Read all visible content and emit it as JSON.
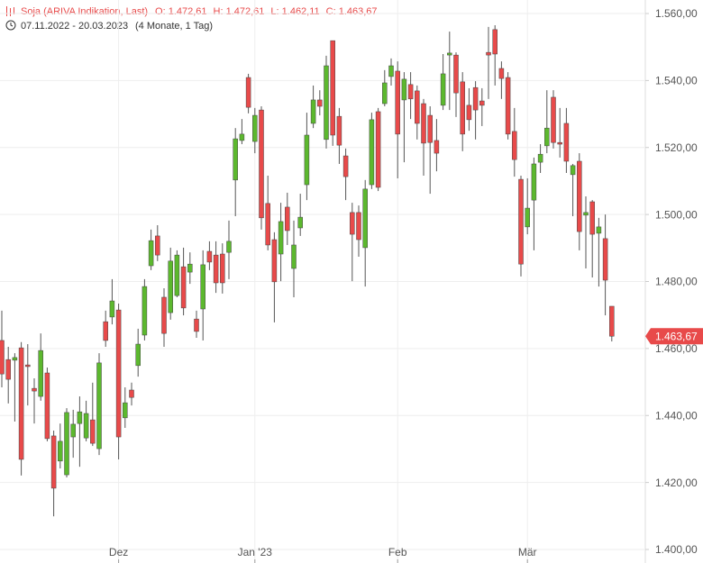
{
  "chart_data": {
    "type": "candlestick",
    "title": "Soja (ARIVA Indikation, Last)",
    "header_values": [
      "O: 1.472,61",
      "H: 1.472,61",
      "L: 1.462,11",
      "C: 1.463,67"
    ],
    "date_range": "07.11.2022 - 20.03.2023",
    "period": "(4 Monate, 1 Tag)",
    "up_color": "#5cb82e",
    "down_color": "#e84a4a",
    "grid": true,
    "ylim": [
      1400,
      1560
    ],
    "yticks": [
      {
        "value": 1400,
        "label": "1.400,00"
      },
      {
        "value": 1420,
        "label": "1.420,00"
      },
      {
        "value": 1440,
        "label": "1.440,00"
      },
      {
        "value": 1460,
        "label": "1.460,00"
      },
      {
        "value": 1480,
        "label": "1.480,00"
      },
      {
        "value": 1500,
        "label": "1.500,00"
      },
      {
        "value": 1520,
        "label": "1.520,00"
      },
      {
        "value": 1540,
        "label": "1.540,00"
      },
      {
        "value": 1560,
        "label": "1.560,00"
      }
    ],
    "last_price": {
      "value": 1463.67,
      "label": "1.463,67"
    },
    "categories": [
      null,
      null,
      null,
      null,
      null,
      null,
      null,
      null,
      null,
      null,
      null,
      null,
      null,
      null,
      null,
      null,
      null,
      null,
      "Dez",
      null,
      null,
      null,
      null,
      null,
      null,
      null,
      null,
      null,
      null,
      null,
      null,
      null,
      null,
      null,
      null,
      null,
      null,
      null,
      null,
      "Jan '23",
      null,
      null,
      null,
      null,
      null,
      null,
      null,
      null,
      null,
      null,
      null,
      null,
      null,
      null,
      null,
      null,
      null,
      null,
      null,
      null,
      null,
      "Feb",
      null,
      null,
      null,
      null,
      null,
      null,
      null,
      null,
      null,
      null,
      null,
      null,
      null,
      null,
      null,
      null,
      null,
      null,
      null,
      "Mär",
      null,
      null,
      null,
      null,
      null,
      null,
      null,
      null,
      null,
      null,
      null,
      null,
      null
    ],
    "open": [
      1462.4,
      1456.7,
      1456.5,
      1460.2,
      1455.1,
      1448.1,
      1445.7,
      1452.7,
      1433.9,
      1426.4,
      1422.3,
      1433.6,
      1437.6,
      1433.3,
      1438.7,
      1430.1,
      1468.0,
      1469.4,
      1471.5,
      1439.3,
      1447.6,
      1454.9,
      1464.0,
      1484.7,
      1493.6,
      1475.3,
      1470.7,
      1475.8,
      1484.4,
      1482.8,
      1468.8,
      1471.8,
      1489.0,
      1487.9,
      1488.2,
      1488.7,
      1510.3,
      1522.1,
      1540.9,
      1521.8,
      1531.2,
      1503.3,
      1492.5,
      1488.2,
      1502.2,
      1483.9,
      1496.0,
      1508.9,
      1527.2,
      1534.2,
      1522.4,
      1551.9,
      1529.3,
      1517.5,
      1500.6,
      1500.6,
      1490.1,
      1508.9,
      1530.7,
      1533.1,
      1541.2,
      1542.8,
      1534.2,
      1538.8,
      1536.9,
      1533.1,
      1529.6,
      1522.1,
      1532.6,
      1547.6,
      1547.6,
      1539.6,
      1532.6,
      1537.9,
      1533.9,
      1548.4,
      1555.2,
      1543.6,
      1540.9,
      1524.8,
      1510.5,
      1496.3,
      1504.3,
      1515.6,
      1520.5,
      1535.0,
      1521.5,
      1527.2,
      1511.9,
      1515.9,
      1499.8,
      1503.8,
      1494.4,
      1492.8,
      1472.61
    ],
    "high": [
      1471.3,
      1460.5,
      1458.6,
      1461.9,
      1461.3,
      1451.1,
      1464.5,
      1454.3,
      1435.5,
      1437.6,
      1442.2,
      1441.7,
      1445.7,
      1444.4,
      1449.8,
      1458.6,
      1471.3,
      1480.7,
      1473.4,
      1448.4,
      1449.8,
      1465.9,
      1480.7,
      1495.5,
      1496.8,
      1478.0,
      1490.1,
      1489.3,
      1490.1,
      1488.7,
      1471.3,
      1489.3,
      1492.0,
      1492.0,
      1491.4,
      1498.2,
      1525.8,
      1528.5,
      1542.0,
      1531.8,
      1532.3,
      1511.6,
      1494.7,
      1503.5,
      1506.5,
      1498.2,
      1506.2,
      1530.4,
      1538.5,
      1537.1,
      1547.4,
      1551.9,
      1531.8,
      1519.7,
      1503.5,
      1502.7,
      1510.3,
      1530.4,
      1531.8,
      1543.1,
      1546.6,
      1545.7,
      1542.5,
      1542.5,
      1538.5,
      1534.5,
      1532.3,
      1528.5,
      1547.9,
      1554.6,
      1548.4,
      1542.5,
      1537.7,
      1539.8,
      1537.7,
      1556.0,
      1556.5,
      1545.7,
      1542.5,
      1531.8,
      1511.6,
      1510.8,
      1517.0,
      1521.0,
      1537.1,
      1537.1,
      1531.8,
      1531.8,
      1515.1,
      1518.3,
      1505.4,
      1504.3,
      1499.0,
      1500.0,
      1472.61
    ],
    "low": [
      1448.4,
      1443.6,
      1438.2,
      1422.1,
      1443.0,
      1437.6,
      1444.4,
      1432.3,
      1409.9,
      1424.2,
      1421.5,
      1427.4,
      1424.7,
      1432.3,
      1430.9,
      1428.2,
      1460.5,
      1467.2,
      1426.9,
      1436.3,
      1443.0,
      1451.6,
      1462.4,
      1483.4,
      1486.1,
      1460.5,
      1468.6,
      1475.3,
      1469.9,
      1479.3,
      1463.2,
      1462.4,
      1483.4,
      1476.6,
      1476.4,
      1480.7,
      1499.5,
      1521.0,
      1530.2,
      1518.3,
      1495.5,
      1489.3,
      1467.8,
      1480.1,
      1490.9,
      1475.3,
      1493.6,
      1504.3,
      1525.8,
      1529.6,
      1519.7,
      1520.5,
      1515.1,
      1504.3,
      1480.1,
      1487.4,
      1478.5,
      1507.6,
      1507.0,
      1532.3,
      1538.5,
      1510.8,
      1515.6,
      1528.5,
      1522.4,
      1511.6,
      1506.2,
      1512.9,
      1531.2,
      1531.2,
      1529.1,
      1518.9,
      1525.0,
      1522.4,
      1526.4,
      1534.5,
      1538.5,
      1534.5,
      1522.4,
      1511.3,
      1481.5,
      1494.1,
      1489.3,
      1512.4,
      1518.3,
      1519.7,
      1517.0,
      1512.4,
      1499.5,
      1489.3,
      1483.9,
      1481.2,
      1478.5,
      1469.9,
      1462.11
    ],
    "close": [
      1452.4,
      1450.8,
      1457.3,
      1426.9,
      1454.6,
      1447.3,
      1459.4,
      1433.1,
      1418.3,
      1432.3,
      1440.9,
      1437.4,
      1441.1,
      1440.6,
      1431.7,
      1455.7,
      1462.4,
      1474.2,
      1433.6,
      1443.8,
      1445.4,
      1461.3,
      1478.5,
      1492.2,
      1487.9,
      1464.5,
      1486.1,
      1487.9,
      1472.1,
      1485.2,
      1465.1,
      1485.0,
      1485.8,
      1479.6,
      1479.6,
      1492.0,
      1522.6,
      1524.0,
      1532.0,
      1529.6,
      1499.0,
      1490.9,
      1479.9,
      1497.9,
      1495.2,
      1490.9,
      1499.2,
      1523.7,
      1534.2,
      1532.3,
      1544.4,
      1523.7,
      1520.7,
      1511.3,
      1494.1,
      1492.5,
      1507.6,
      1528.3,
      1508.1,
      1539.3,
      1544.4,
      1524.0,
      1540.4,
      1534.5,
      1527.2,
      1521.3,
      1521.5,
      1518.3,
      1542.0,
      1548.2,
      1536.3,
      1524.0,
      1528.3,
      1531.2,
      1532.6,
      1547.6,
      1547.9,
      1540.6,
      1524.0,
      1516.4,
      1485.2,
      1501.9,
      1515.1,
      1518.0,
      1525.8,
      1521.5,
      1521.0,
      1515.9,
      1514.6,
      1494.9,
      1500.6,
      1494.1,
      1496.3,
      1480.4,
      1463.67
    ]
  }
}
